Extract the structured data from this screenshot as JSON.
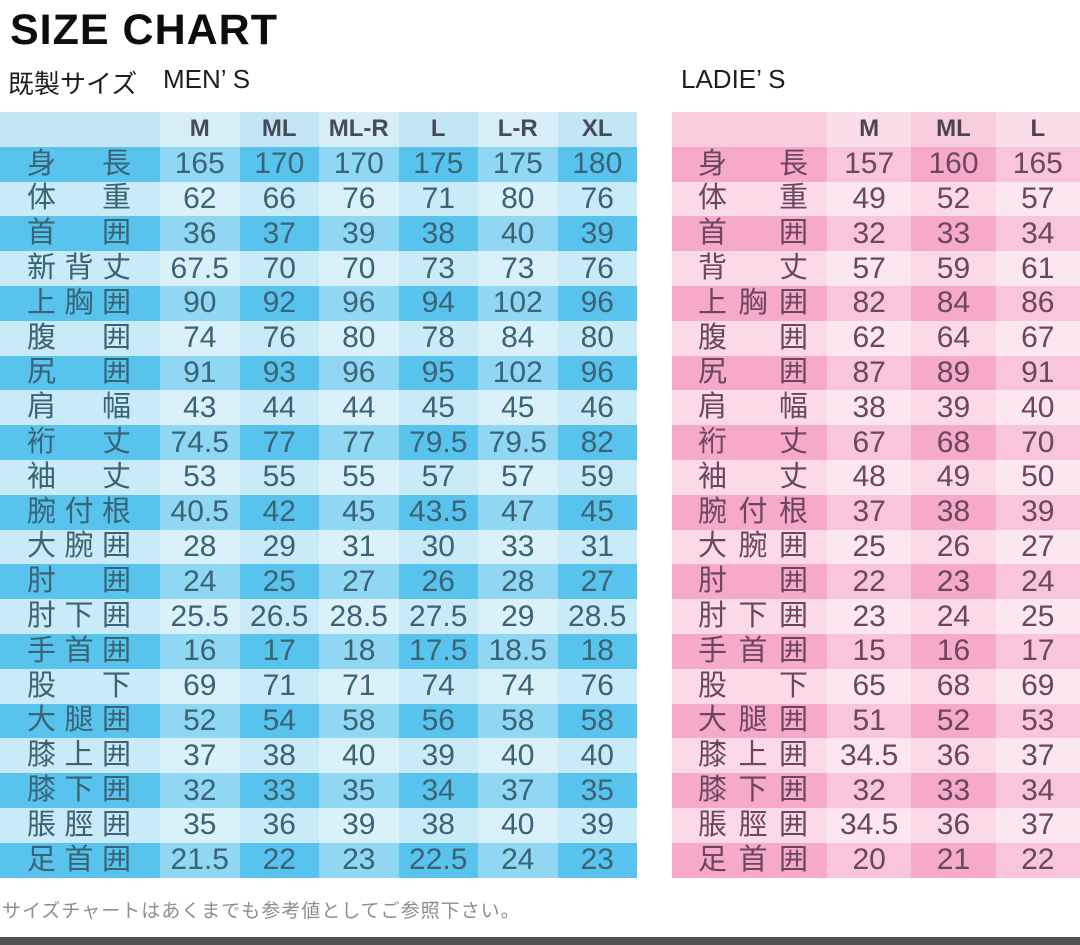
{
  "title": "SIZE CHART",
  "subtitle": {
    "ready_made": "既製サイズ",
    "mens": "MEN’ S",
    "ladies": "LADIE’ S"
  },
  "note": "サイズチャートはあくまでも参考値としてご参照下さい。",
  "bottom_bar_color": "#515151",
  "chart_data": [
    {
      "type": "table",
      "name": "mens",
      "title": "MEN’ S",
      "columns": [
        "M",
        "ML",
        "ML-R",
        "L",
        "L-R",
        "XL"
      ],
      "colors": {
        "row_dark": "#58c4ed",
        "row_light": "#c9eaf7",
        "header_bg": "#c4e5f3",
        "text": "#3a6375",
        "header_text": "#454c57"
      },
      "rows": [
        {
          "label": "身長",
          "values": [
            "165",
            "170",
            "170",
            "175",
            "175",
            "180"
          ]
        },
        {
          "label": "体重",
          "values": [
            "62",
            "66",
            "76",
            "71",
            "80",
            "76"
          ]
        },
        {
          "label": "首囲",
          "values": [
            "36",
            "37",
            "39",
            "38",
            "40",
            "39"
          ]
        },
        {
          "label": "新背丈",
          "values": [
            "67.5",
            "70",
            "70",
            "73",
            "73",
            "76"
          ]
        },
        {
          "label": "上胸囲",
          "values": [
            "90",
            "92",
            "96",
            "94",
            "102",
            "96"
          ]
        },
        {
          "label": "腹囲",
          "values": [
            "74",
            "76",
            "80",
            "78",
            "84",
            "80"
          ]
        },
        {
          "label": "尻囲",
          "values": [
            "91",
            "93",
            "96",
            "95",
            "102",
            "96"
          ]
        },
        {
          "label": "肩幅",
          "values": [
            "43",
            "44",
            "44",
            "45",
            "45",
            "46"
          ]
        },
        {
          "label": "裄丈",
          "values": [
            "74.5",
            "77",
            "77",
            "79.5",
            "79.5",
            "82"
          ]
        },
        {
          "label": "袖丈",
          "values": [
            "53",
            "55",
            "55",
            "57",
            "57",
            "59"
          ]
        },
        {
          "label": "腕付根",
          "values": [
            "40.5",
            "42",
            "45",
            "43.5",
            "47",
            "45"
          ]
        },
        {
          "label": "大腕囲",
          "values": [
            "28",
            "29",
            "31",
            "30",
            "33",
            "31"
          ]
        },
        {
          "label": "肘囲",
          "values": [
            "24",
            "25",
            "27",
            "26",
            "28",
            "27"
          ]
        },
        {
          "label": "肘下囲",
          "values": [
            "25.5",
            "26.5",
            "28.5",
            "27.5",
            "29",
            "28.5"
          ]
        },
        {
          "label": "手首囲",
          "values": [
            "16",
            "17",
            "18",
            "17.5",
            "18.5",
            "18"
          ]
        },
        {
          "label": "股下",
          "values": [
            "69",
            "71",
            "71",
            "74",
            "74",
            "76"
          ]
        },
        {
          "label": "大腿囲",
          "values": [
            "52",
            "54",
            "58",
            "56",
            "58",
            "58"
          ]
        },
        {
          "label": "膝上囲",
          "values": [
            "37",
            "38",
            "40",
            "39",
            "40",
            "40"
          ]
        },
        {
          "label": "膝下囲",
          "values": [
            "32",
            "33",
            "35",
            "34",
            "37",
            "35"
          ]
        },
        {
          "label": "脹脛囲",
          "values": [
            "35",
            "36",
            "39",
            "38",
            "40",
            "39"
          ]
        },
        {
          "label": "足首囲",
          "values": [
            "21.5",
            "22",
            "23",
            "22.5",
            "24",
            "23"
          ]
        }
      ]
    },
    {
      "type": "table",
      "name": "ladies",
      "title": "LADIE’ S",
      "columns": [
        "M",
        "ML",
        "L"
      ],
      "colors": {
        "row_dark": "#f6a9c8",
        "row_light": "#fbdae8",
        "header_bg": "#f8cdde",
        "text": "#6b4660",
        "header_text": "#4a4551"
      },
      "rows": [
        {
          "label": "身長",
          "values": [
            "157",
            "160",
            "165"
          ]
        },
        {
          "label": "体重",
          "values": [
            "49",
            "52",
            "57"
          ]
        },
        {
          "label": "首囲",
          "values": [
            "32",
            "33",
            "34"
          ]
        },
        {
          "label": "背丈",
          "values": [
            "57",
            "59",
            "61"
          ]
        },
        {
          "label": "上胸囲",
          "values": [
            "82",
            "84",
            "86"
          ]
        },
        {
          "label": "腹囲",
          "values": [
            "62",
            "64",
            "67"
          ]
        },
        {
          "label": "尻囲",
          "values": [
            "87",
            "89",
            "91"
          ]
        },
        {
          "label": "肩幅",
          "values": [
            "38",
            "39",
            "40"
          ]
        },
        {
          "label": "裄丈",
          "values": [
            "67",
            "68",
            "70"
          ]
        },
        {
          "label": "袖丈",
          "values": [
            "48",
            "49",
            "50"
          ]
        },
        {
          "label": "腕付根",
          "values": [
            "37",
            "38",
            "39"
          ]
        },
        {
          "label": "大腕囲",
          "values": [
            "25",
            "26",
            "27"
          ]
        },
        {
          "label": "肘囲",
          "values": [
            "22",
            "23",
            "24"
          ]
        },
        {
          "label": "肘下囲",
          "values": [
            "23",
            "24",
            "25"
          ]
        },
        {
          "label": "手首囲",
          "values": [
            "15",
            "16",
            "17"
          ]
        },
        {
          "label": "股下",
          "values": [
            "65",
            "68",
            "69"
          ]
        },
        {
          "label": "大腿囲",
          "values": [
            "51",
            "52",
            "53"
          ]
        },
        {
          "label": "膝上囲",
          "values": [
            "34.5",
            "36",
            "37"
          ]
        },
        {
          "label": "膝下囲",
          "values": [
            "32",
            "33",
            "34"
          ]
        },
        {
          "label": "脹脛囲",
          "values": [
            "34.5",
            "36",
            "37"
          ]
        },
        {
          "label": "足首囲",
          "values": [
            "20",
            "21",
            "22"
          ]
        }
      ]
    }
  ]
}
